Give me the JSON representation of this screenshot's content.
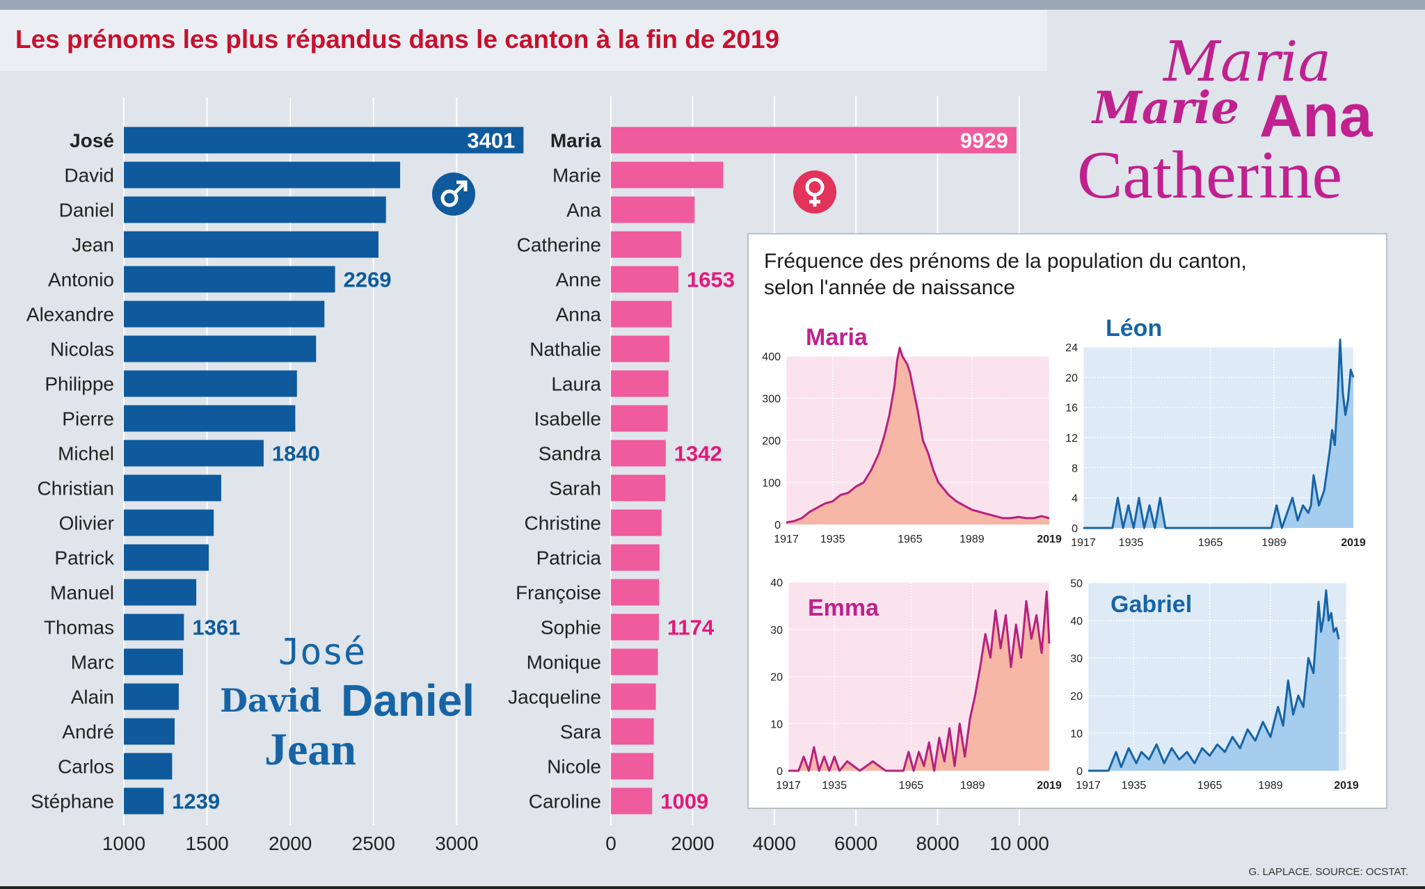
{
  "title": "Les prénoms les plus répandus dans le canton à la fin de 2019",
  "source": "G. LAPLACE. SOURCE: OCSTAT.",
  "decor": {
    "female": {
      "line1": "Maria",
      "line2a": "Marie",
      "line2b": "Ana",
      "line3": "Catherine"
    },
    "male": {
      "line1": "José",
      "line2a": "David",
      "line2b": "Daniel",
      "line3": "Jean"
    }
  },
  "colors": {
    "male": "#0e5a9c",
    "female": "#ef5b9c",
    "magenta": "#c0218e",
    "title": "#c8102e"
  },
  "icons": {
    "male": "male-symbol-icon",
    "female": "female-symbol-icon"
  },
  "chart_data": [
    {
      "type": "bar",
      "orientation": "horizontal",
      "series_color": "#0e5a9c",
      "categories": [
        "José",
        "David",
        "Daniel",
        "Jean",
        "Antonio",
        "Alexandre",
        "Nicolas",
        "Philippe",
        "Pierre",
        "Michel",
        "Christian",
        "Olivier",
        "Patrick",
        "Manuel",
        "Thomas",
        "Marc",
        "Alain",
        "André",
        "Carlos",
        "Stéphane"
      ],
      "values": [
        3401,
        2660,
        2575,
        2530,
        2269,
        2205,
        2155,
        2040,
        2030,
        1840,
        1585,
        1540,
        1510,
        1435,
        1361,
        1355,
        1330,
        1305,
        1290,
        1239
      ],
      "value_labels": [
        "3401",
        "",
        "",
        "",
        "2269",
        "",
        "",
        "",
        "",
        "1840",
        "",
        "",
        "",
        "",
        "1361",
        "",
        "",
        "",
        "",
        "1239"
      ],
      "xlim": [
        1000,
        3400
      ],
      "xticks": [
        1000,
        1500,
        2000,
        2500,
        3000
      ],
      "xtick_labels": [
        "1000",
        "1500",
        "2000",
        "2500",
        "3000"
      ],
      "grid": true
    },
    {
      "type": "bar",
      "orientation": "horizontal",
      "series_color": "#ef5b9c",
      "categories": [
        "Maria",
        "Marie",
        "Ana",
        "Catherine",
        "Anne",
        "Anna",
        "Nathalie",
        "Laura",
        "Isabelle",
        "Sandra",
        "Sarah",
        "Christine",
        "Patricia",
        "Françoise",
        "Sophie",
        "Monique",
        "Jacqueline",
        "Sara",
        "Nicole",
        "Caroline"
      ],
      "values": [
        9929,
        2750,
        2050,
        1720,
        1653,
        1490,
        1430,
        1410,
        1390,
        1342,
        1330,
        1240,
        1190,
        1180,
        1174,
        1150,
        1100,
        1050,
        1040,
        1009
      ],
      "value_labels": [
        "9929",
        "",
        "",
        "",
        "1653",
        "",
        "",
        "",
        "",
        "1342",
        "",
        "",
        "",
        "",
        "1174",
        "",
        "",
        "",
        "",
        "1009"
      ],
      "xlim": [
        0,
        11000
      ],
      "xticks": [
        0,
        2000,
        4000,
        6000,
        8000,
        10000
      ],
      "xtick_labels": [
        "0",
        "2000",
        "4000",
        "6000",
        "8000",
        "10 000"
      ],
      "grid": true
    },
    {
      "type": "area",
      "panel_title": "Fréquence des prénoms de la population du canton, selon l'année de naissance",
      "subplots": [
        {
          "name": "Maria",
          "xlim": [
            1917,
            2019
          ],
          "ylim": [
            0,
            400
          ],
          "yticks": [
            0,
            100,
            200,
            300,
            400
          ],
          "xticks": [
            1917,
            1935,
            1965,
            1989,
            2019
          ],
          "line_color": "#b5217f",
          "fill_color": "#f6b7a6",
          "bg_color": "#fbe3ee",
          "x": [
            1917,
            1920,
            1923,
            1926,
            1929,
            1932,
            1935,
            1938,
            1941,
            1944,
            1947,
            1950,
            1953,
            1955,
            1957,
            1959,
            1960,
            1961,
            1962,
            1963,
            1964,
            1965,
            1966,
            1968,
            1970,
            1972,
            1974,
            1976,
            1978,
            1980,
            1983,
            1986,
            1989,
            1992,
            1995,
            1998,
            2001,
            2004,
            2007,
            2010,
            2013,
            2016,
            2019
          ],
          "y": [
            5,
            8,
            15,
            30,
            40,
            50,
            55,
            70,
            75,
            90,
            100,
            130,
            170,
            210,
            260,
            330,
            390,
            420,
            400,
            390,
            380,
            360,
            330,
            270,
            200,
            170,
            130,
            100,
            85,
            70,
            55,
            45,
            35,
            30,
            25,
            20,
            15,
            15,
            18,
            15,
            15,
            20,
            15
          ]
        },
        {
          "name": "Léon",
          "xlim": [
            1917,
            2019
          ],
          "ylim": [
            0,
            24
          ],
          "yticks": [
            0,
            4,
            8,
            12,
            16,
            20,
            24
          ],
          "xticks": [
            1917,
            1935,
            1965,
            1989,
            2019
          ],
          "line_color": "#1664a6",
          "fill_color": "#a6cdee",
          "bg_color": "#deebf7",
          "x": [
            1917,
            1928,
            1930,
            1932,
            1934,
            1936,
            1938,
            1940,
            1942,
            1944,
            1946,
            1948,
            1950,
            1955,
            1960,
            1965,
            1970,
            1975,
            1980,
            1985,
            1988,
            1990,
            1992,
            1994,
            1996,
            1998,
            2000,
            2002,
            2003,
            2004,
            2006,
            2008,
            2010,
            2011,
            2012,
            2013,
            2014,
            2015,
            2016,
            2017,
            2018,
            2019
          ],
          "y": [
            0,
            0,
            4,
            0,
            3,
            0,
            4,
            0,
            3,
            0,
            4,
            0,
            0,
            0,
            0,
            0,
            0,
            0,
            0,
            0,
            0,
            3,
            0,
            2,
            4,
            1,
            3,
            2,
            3,
            7,
            3,
            5,
            10,
            13,
            11,
            17,
            25,
            18,
            15,
            17,
            21,
            20
          ]
        },
        {
          "name": "Emma",
          "xlim": [
            1917,
            2019
          ],
          "ylim": [
            0,
            40
          ],
          "yticks": [
            0,
            10,
            20,
            30,
            40
          ],
          "xticks": [
            1917,
            1935,
            1965,
            1989,
            2019
          ],
          "line_color": "#b5217f",
          "fill_color": "#f6b7a6",
          "bg_color": "#fbe3ee",
          "x": [
            1917,
            1921,
            1923,
            1925,
            1927,
            1929,
            1931,
            1933,
            1935,
            1937,
            1940,
            1945,
            1950,
            1955,
            1962,
            1964,
            1966,
            1968,
            1970,
            1972,
            1974,
            1976,
            1978,
            1980,
            1982,
            1984,
            1986,
            1988,
            1990,
            1992,
            1994,
            1996,
            1998,
            2000,
            2002,
            2004,
            2006,
            2008,
            2010,
            2012,
            2014,
            2016,
            2018,
            2019
          ],
          "y": [
            0,
            0,
            3,
            0,
            5,
            0,
            3,
            0,
            3,
            0,
            2,
            0,
            2,
            0,
            0,
            4,
            0,
            4,
            1,
            6,
            0,
            7,
            2,
            9,
            1,
            10,
            3,
            11,
            16,
            22,
            29,
            24,
            34,
            26,
            33,
            22,
            31,
            24,
            36,
            28,
            33,
            25,
            38,
            27
          ]
        },
        {
          "name": "Gabriel",
          "xlim": [
            1917,
            2019
          ],
          "ylim": [
            0,
            50
          ],
          "yticks": [
            0,
            10,
            20,
            30,
            40,
            50
          ],
          "xticks": [
            1917,
            1935,
            1965,
            1989,
            2019
          ],
          "line_color": "#1664a6",
          "fill_color": "#a6cdee",
          "bg_color": "#deebf7",
          "x": [
            1917,
            1925,
            1928,
            1930,
            1933,
            1936,
            1938,
            1941,
            1944,
            1947,
            1950,
            1953,
            1956,
            1959,
            1962,
            1965,
            1968,
            1971,
            1974,
            1977,
            1980,
            1983,
            1986,
            1989,
            1992,
            1994,
            1996,
            1998,
            2000,
            2002,
            2004,
            2006,
            2008,
            2009,
            2010,
            2011,
            2012,
            2013,
            2014,
            2015,
            2016
          ],
          "y": [
            0,
            0,
            5,
            1,
            6,
            2,
            5,
            3,
            7,
            2,
            6,
            3,
            5,
            2,
            6,
            4,
            7,
            5,
            9,
            6,
            11,
            8,
            13,
            9,
            17,
            12,
            24,
            15,
            20,
            17,
            30,
            26,
            45,
            37,
            41,
            48,
            40,
            42,
            37,
            38,
            35
          ]
        }
      ]
    }
  ]
}
